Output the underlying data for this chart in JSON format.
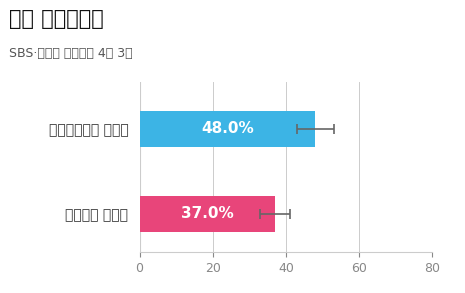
{
  "title": "서울 중구성동갑",
  "subtitle": "SBS·입소스 주식회사 4월 3일",
  "candidates": [
    "더불어민주당 전현희",
    "국민의힘 윤희숙"
  ],
  "values": [
    48.0,
    37.0
  ],
  "errors": [
    5.0,
    4.0
  ],
  "colors": [
    "#3CB4E5",
    "#E8457A"
  ],
  "xlim": [
    0,
    80
  ],
  "xticks": [
    0,
    20,
    40,
    60,
    80
  ],
  "bar_height": 0.42,
  "value_labels": [
    "48.0%",
    "37.0%"
  ],
  "background_color": "#FFFFFF",
  "grid_color": "#CCCCCC",
  "label_fontsize": 10,
  "value_fontsize": 11,
  "title_fontsize": 15,
  "subtitle_fontsize": 9,
  "tick_fontsize": 9
}
